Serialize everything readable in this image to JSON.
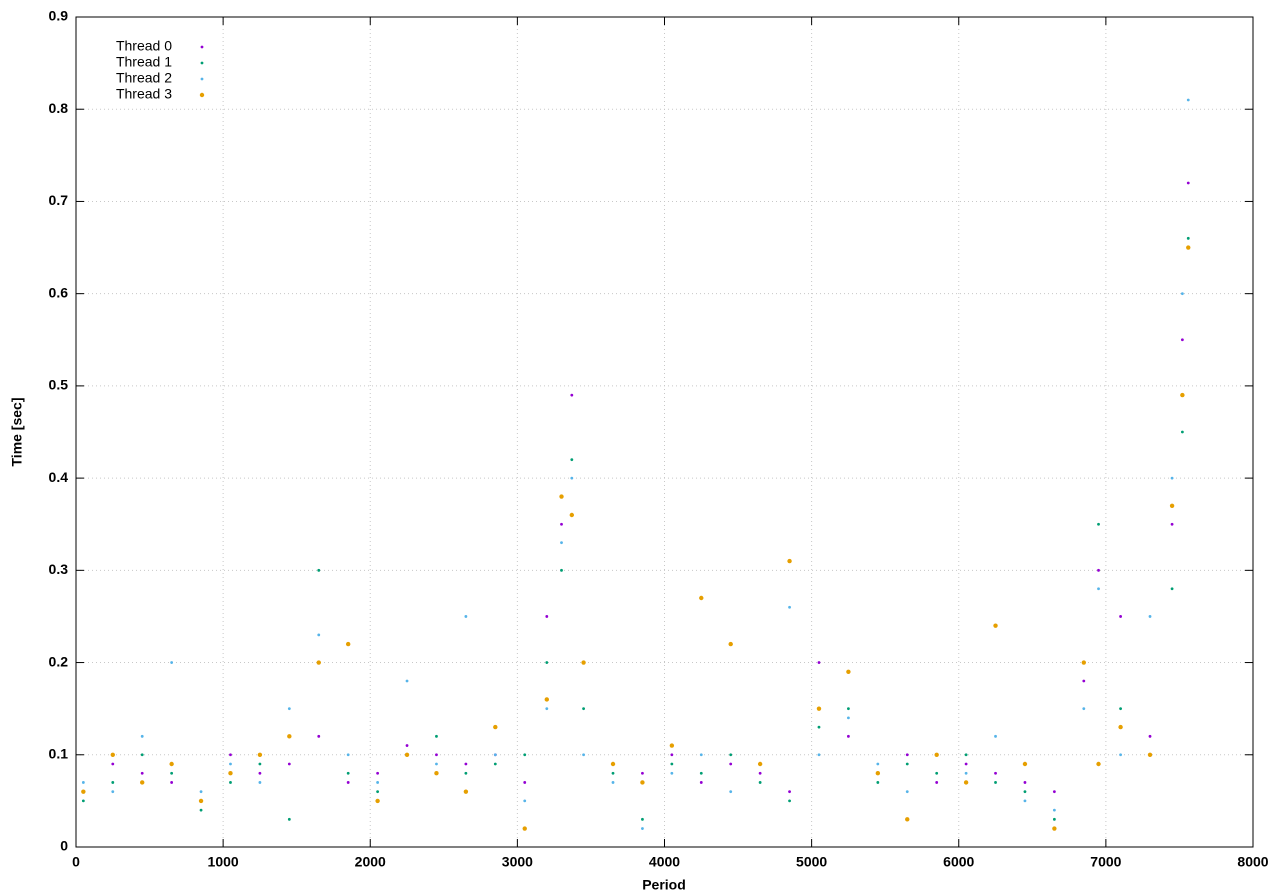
{
  "chart_data": {
    "type": "scatter",
    "x_label": "Period",
    "y_label": "Time [sec]",
    "xlim": [
      0,
      8000
    ],
    "ylim": [
      0,
      0.9
    ],
    "xticks": [
      0,
      1000,
      2000,
      3000,
      4000,
      5000,
      6000,
      7000,
      8000
    ],
    "yticks": [
      0,
      0.1,
      0.2,
      0.3,
      0.4,
      0.5,
      0.6,
      0.7,
      0.8,
      0.9
    ],
    "grid": true,
    "legend": "top-left",
    "x": [
      50,
      250,
      450,
      650,
      850,
      1050,
      1250,
      1450,
      1650,
      1850,
      2050,
      2250,
      2450,
      2650,
      2850,
      3050,
      3200,
      3300,
      3370,
      3450,
      3650,
      3850,
      4050,
      4250,
      4450,
      4650,
      4850,
      5050,
      5250,
      5450,
      5650,
      5850,
      6050,
      6250,
      6450,
      6650,
      6850,
      6950,
      7100,
      7300,
      7450,
      7520,
      7560
    ],
    "series": [
      {
        "name": "Thread 0",
        "color": "#9400d3",
        "values": [
          0.06,
          0.09,
          0.08,
          0.07,
          0.05,
          0.1,
          0.08,
          0.09,
          0.12,
          0.07,
          0.08,
          0.11,
          0.1,
          0.09,
          0.1,
          0.07,
          0.25,
          0.35,
          0.49,
          0.2,
          0.09,
          0.08,
          0.1,
          0.07,
          0.09,
          0.08,
          0.06,
          0.2,
          0.12,
          0.08,
          0.1,
          0.07,
          0.09,
          0.08,
          0.07,
          0.06,
          0.18,
          0.3,
          0.25,
          0.12,
          0.35,
          0.55,
          0.72
        ]
      },
      {
        "name": "Thread 1",
        "color": "#009e73",
        "values": [
          0.05,
          0.07,
          0.1,
          0.08,
          0.04,
          0.07,
          0.09,
          0.03,
          0.3,
          0.08,
          0.06,
          0.1,
          0.12,
          0.08,
          0.09,
          0.1,
          0.2,
          0.3,
          0.42,
          0.15,
          0.08,
          0.03,
          0.09,
          0.08,
          0.1,
          0.07,
          0.05,
          0.13,
          0.15,
          0.07,
          0.09,
          0.08,
          0.1,
          0.07,
          0.06,
          0.03,
          0.2,
          0.35,
          0.15,
          0.1,
          0.28,
          0.45,
          0.66
        ]
      },
      {
        "name": "Thread 2",
        "color": "#56b4e9",
        "values": [
          0.07,
          0.06,
          0.12,
          0.2,
          0.06,
          0.09,
          0.07,
          0.15,
          0.23,
          0.1,
          0.07,
          0.18,
          0.09,
          0.25,
          0.1,
          0.05,
          0.15,
          0.33,
          0.4,
          0.1,
          0.07,
          0.02,
          0.08,
          0.1,
          0.06,
          0.09,
          0.26,
          0.1,
          0.14,
          0.09,
          0.06,
          0.1,
          0.08,
          0.12,
          0.05,
          0.04,
          0.15,
          0.28,
          0.1,
          0.25,
          0.4,
          0.6,
          0.81
        ]
      },
      {
        "name": "Thread 3",
        "color": "#e69f00",
        "values": [
          0.06,
          0.1,
          0.07,
          0.09,
          0.05,
          0.08,
          0.1,
          0.12,
          0.2,
          0.22,
          0.05,
          0.1,
          0.08,
          0.06,
          0.13,
          0.02,
          0.16,
          0.38,
          0.36,
          0.2,
          0.09,
          0.07,
          0.11,
          0.27,
          0.22,
          0.09,
          0.31,
          0.15,
          0.19,
          0.08,
          0.03,
          0.1,
          0.07,
          0.24,
          0.09,
          0.02,
          0.2,
          0.09,
          0.13,
          0.1,
          0.37,
          0.49,
          0.65
        ]
      }
    ]
  }
}
